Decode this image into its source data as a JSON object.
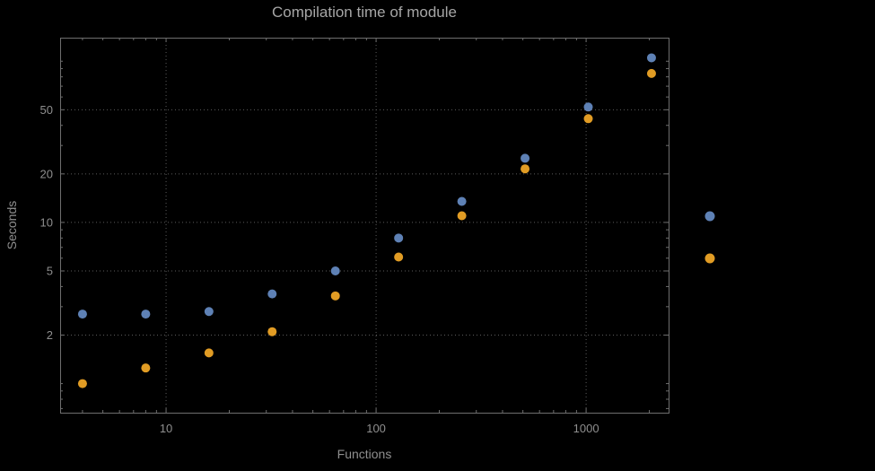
{
  "chart": {
    "title": "Compilation time of module",
    "xlabel": "Functions",
    "ylabel": "Seconds"
  },
  "chart_data": {
    "type": "scatter",
    "title": "Compilation time of module",
    "xlabel": "Functions",
    "ylabel": "Seconds",
    "x_scale": "log",
    "y_scale": "log",
    "grid": true,
    "x": [
      4,
      8,
      16,
      32,
      64,
      128,
      256,
      512,
      1024,
      2048
    ],
    "series": [
      {
        "id": "series-1",
        "color": "#5e81b5",
        "values": [
          2.7,
          2.7,
          2.8,
          3.6,
          5.0,
          8.0,
          13.5,
          25,
          52,
          105
        ]
      },
      {
        "id": "series-2",
        "color": "#e19c24",
        "values": [
          1.0,
          1.25,
          1.55,
          2.1,
          3.5,
          6.1,
          11,
          21.5,
          44,
          84
        ]
      }
    ],
    "xlim": [
      3.13,
      2470
    ],
    "ylim": [
      0.66,
      140
    ],
    "x_ticks": [
      {
        "value": 10,
        "label": "10"
      },
      {
        "value": 100,
        "label": "100"
      },
      {
        "value": 1000,
        "label": "1000"
      }
    ],
    "y_ticks": [
      {
        "value": 2,
        "label": "2"
      },
      {
        "value": 5,
        "label": "5"
      },
      {
        "value": 10,
        "label": "10"
      },
      {
        "value": 20,
        "label": "20"
      },
      {
        "value": 50,
        "label": "50"
      }
    ],
    "x_minor_ticks": [
      4,
      5,
      6,
      7,
      8,
      9,
      20,
      30,
      40,
      50,
      60,
      70,
      80,
      90,
      200,
      300,
      400,
      500,
      600,
      700,
      800,
      900,
      2000
    ],
    "y_minor_ticks": [
      0.7,
      0.8,
      0.9,
      1,
      3,
      4,
      6,
      7,
      8,
      9,
      30,
      40,
      60,
      70,
      80,
      90,
      100
    ],
    "legend": {
      "position": "right",
      "markers": [
        "#5e81b5",
        "#e19c24"
      ]
    }
  },
  "colors": {
    "background": "#000000",
    "frame": "#6e6e6e",
    "grid": "#5c5c5c",
    "tick_label": "#8f8f8f",
    "title": "#a6a6a6",
    "series_blue": "#5e81b5",
    "series_orange": "#e19c24"
  }
}
